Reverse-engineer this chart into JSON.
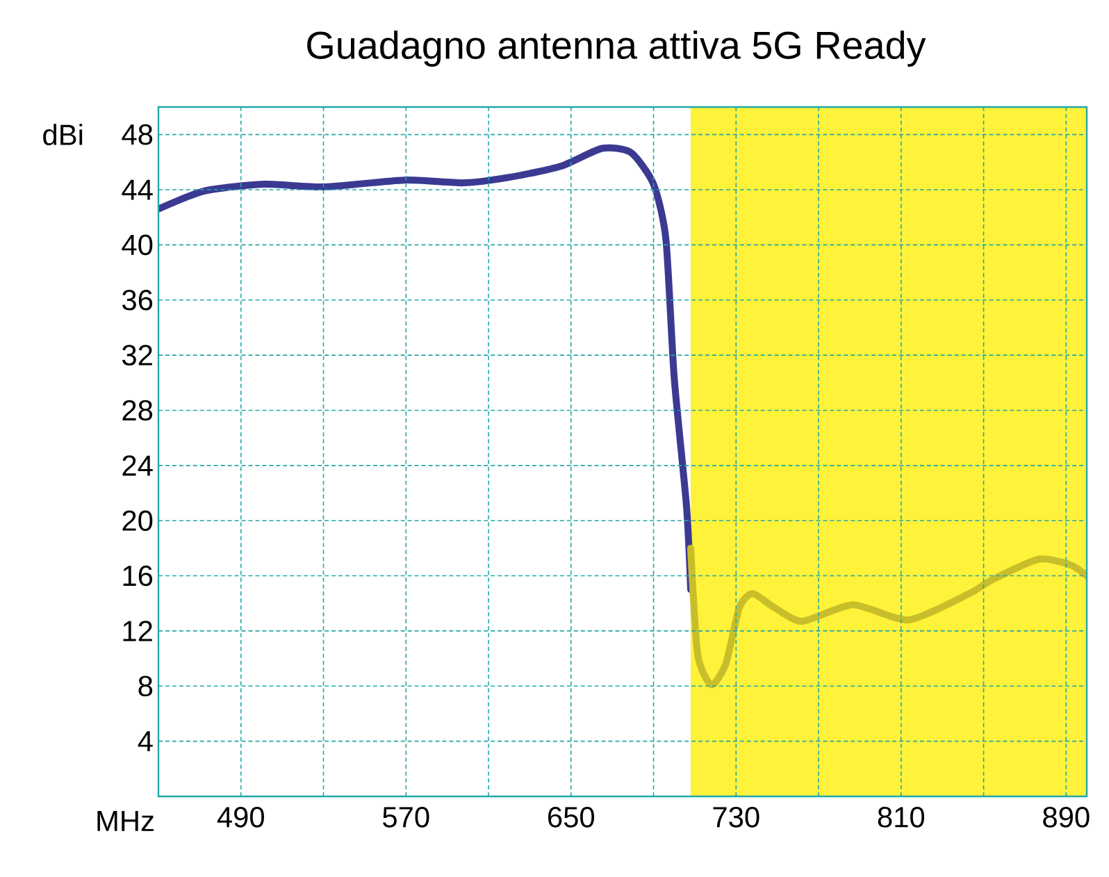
{
  "chart_data": {
    "type": "line",
    "title": "Guadagno antenna attiva 5G Ready",
    "xlabel": "MHz",
    "ylabel": "dBi",
    "xlim": [
      450,
      900
    ],
    "ylim": [
      0,
      50
    ],
    "xticks": [
      490,
      {
        "value": 530,
        "label": null
      },
      570,
      {
        "value": 610,
        "label": null
      },
      650,
      {
        "value": 690,
        "label": null
      },
      730,
      {
        "value": 770,
        "label": null
      },
      810,
      {
        "value": 850,
        "label": null
      },
      890
    ],
    "yticks": [
      4,
      8,
      12,
      16,
      20,
      24,
      28,
      32,
      36,
      40,
      44,
      48
    ],
    "grid": true,
    "bands": [
      {
        "axis": "x",
        "from": 708,
        "to": 900,
        "color": "#fff23a"
      }
    ],
    "series": [
      {
        "color": "#3b3a92",
        "x": [
          450,
          472,
          501,
          530,
          569,
          598,
          620,
          645,
          665,
          679,
          690,
          696,
          700,
          706,
          708
        ],
        "values": [
          42.6,
          43.9,
          44.4,
          44.2,
          44.7,
          44.5,
          44.9,
          45.7,
          47.0,
          46.7,
          44.4,
          40.4,
          30.4,
          21,
          15
        ]
      },
      {
        "color": "#c8be2a",
        "x": [
          708,
          711.4,
          718,
          725,
          731.6,
          738,
          748.5,
          762,
          786.7,
          813.7,
          843,
          854,
          876.6,
          892,
          900
        ],
        "values": [
          18,
          10.3,
          8.1,
          9.6,
          13.7,
          14.7,
          13.7,
          12.7,
          13.9,
          12.8,
          14.7,
          15.7,
          17.2,
          16.8,
          16.0
        ]
      }
    ]
  }
}
